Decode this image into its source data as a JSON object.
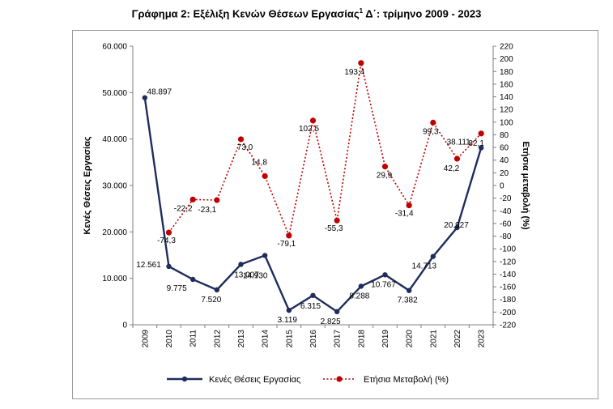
{
  "title": {
    "main": "Γράφημα 2: Εξέλιξη Κενών Θέσεων Εργασίας",
    "sup": "1",
    "rest": " Δ΄: τρίμηνο 2009 - 2023"
  },
  "chart_data": {
    "type": "line",
    "title": "Γράφημα 2: Εξέλιξη Κενών Θέσεων Εργασίας1 Δ΄: τρίμηνο 2009 - 2023",
    "categories": [
      "2009",
      "2010",
      "2011",
      "2012",
      "2013",
      "2014",
      "2015",
      "2016",
      "2017",
      "2018",
      "2019",
      "2020",
      "2021",
      "2022",
      "2023"
    ],
    "y_left": {
      "label": "Κενές Θέσεις Εργασίας",
      "min": 0,
      "max": 60000,
      "step": 10000,
      "tick_labels": [
        "0",
        "10.000",
        "20.000",
        "30.000",
        "40.000",
        "50.000",
        "60.000"
      ]
    },
    "y_right": {
      "label": "Ετήσια μεταβολή (%)",
      "min": -220,
      "max": 220,
      "step": 20,
      "tick_labels": [
        "-220",
        "-200",
        "-180",
        "-160",
        "-140",
        "-120",
        "-100",
        "-80",
        "-60",
        "-40",
        "-20",
        "0",
        "20",
        "40",
        "60",
        "80",
        "100",
        "120",
        "140",
        "160",
        "180",
        "200",
        "220"
      ]
    },
    "series": [
      {
        "name": "Κενές Θέσεις Εργασίας",
        "axis": "left",
        "color": "#1f2d5c",
        "style": "solid",
        "values": [
          48897,
          12561,
          9775,
          7520,
          13007,
          14930,
          3119,
          6315,
          2825,
          8288,
          10767,
          7382,
          14713,
          20927,
          38111
        ],
        "labels": [
          "48.897",
          "12.561",
          "9.775",
          "7.520",
          "13.007",
          "14.930",
          "3.119",
          "6.315",
          "2.825",
          "8.288",
          "10.767",
          "7.382",
          "14.713",
          "20.927",
          "38.111"
        ]
      },
      {
        "name": "Ετήσια Μεταβολή (%)",
        "axis": "right",
        "color": "#c00000",
        "style": "dotted",
        "values": [
          null,
          -74.3,
          -22.2,
          -23.1,
          73.0,
          14.8,
          -79.1,
          102.5,
          -55.3,
          193.4,
          29.9,
          -31.4,
          99.3,
          42.2,
          82.1
        ],
        "labels": [
          "",
          "-74,3",
          "-22,2",
          "-23,1",
          "73,0",
          "14,8",
          "-79,1",
          "102,5",
          "-55,3",
          "193,4",
          "29,9",
          "-31,4",
          "99,3",
          "42,2",
          "82,1"
        ]
      }
    ],
    "legend": {
      "position": "bottom"
    },
    "grid": false
  }
}
